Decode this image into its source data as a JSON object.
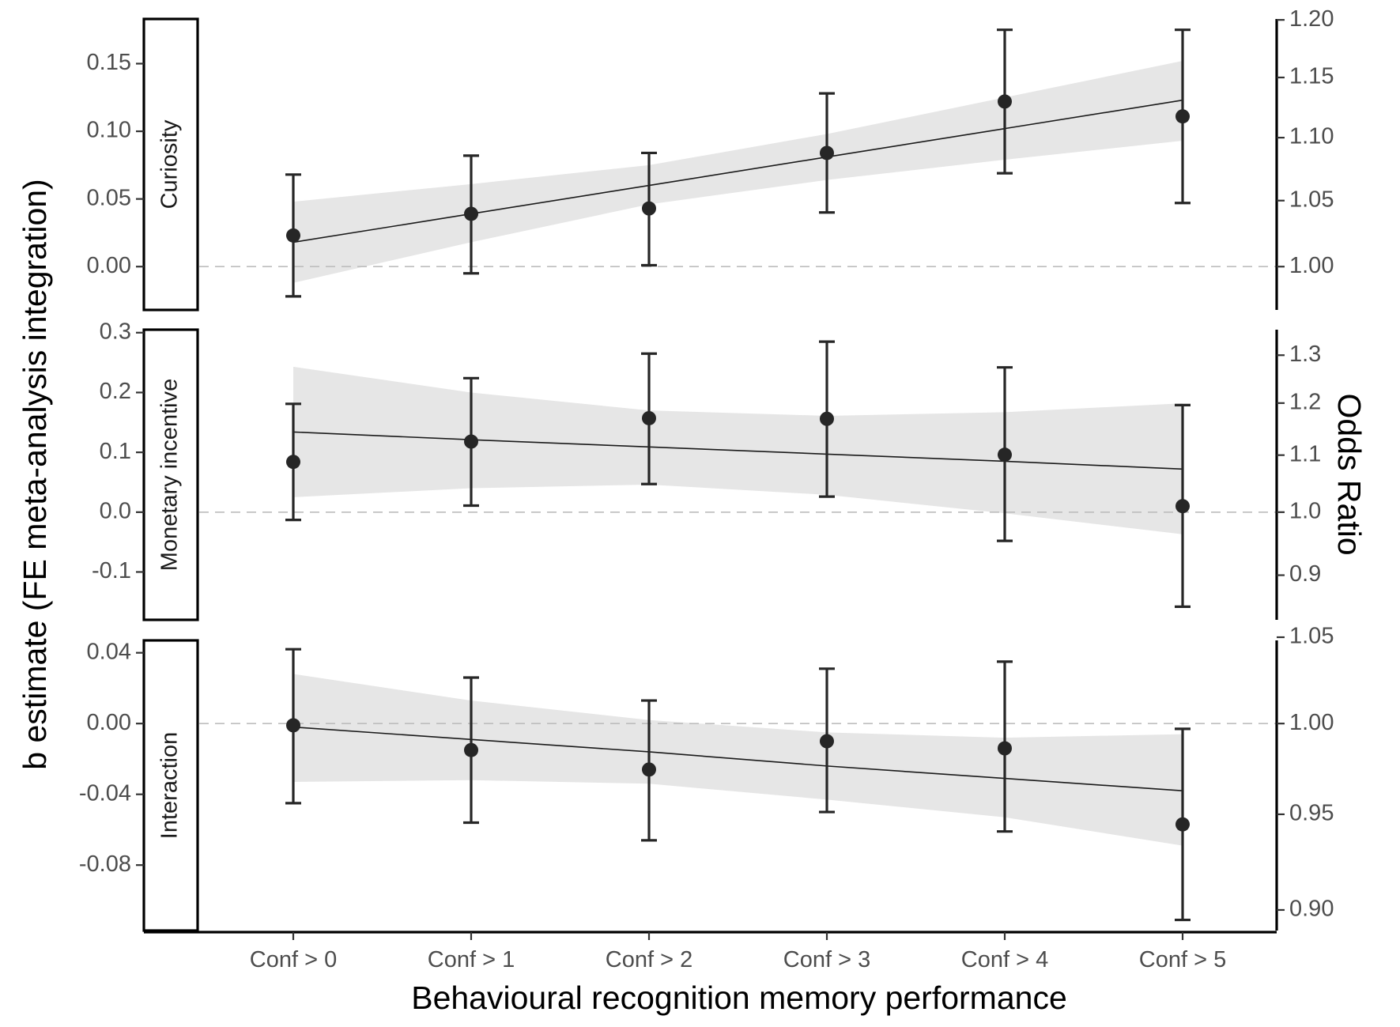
{
  "chart_data": {
    "type": "scatter",
    "x_categories": [
      "Conf > 0",
      "Conf > 1",
      "Conf > 2",
      "Conf > 3",
      "Conf > 4",
      "Conf > 5"
    ],
    "xlabel": "Behavioural recognition memory performance",
    "ylabel": "b estimate (FE meta-analysis integration)",
    "ylabel_right": "Odds Ratio",
    "reference_line": 0,
    "panels": [
      {
        "label": "Curiosity",
        "ylim": [
          -0.032,
          0.183
        ],
        "yticks": [
          0.0,
          0.05,
          0.1,
          0.15
        ],
        "ytick_labels": [
          "0.00",
          "0.05",
          "0.10",
          "0.15"
        ],
        "or_ticks": [
          1.0,
          1.05,
          1.1,
          1.15,
          1.2
        ],
        "or_tick_labels": [
          "1.00",
          "1.05",
          "1.10",
          "1.15",
          "1.20"
        ],
        "estimates": [
          0.023,
          0.039,
          0.043,
          0.084,
          0.122,
          0.111
        ],
        "ci_lower": [
          -0.022,
          -0.005,
          0.001,
          0.04,
          0.069,
          0.047
        ],
        "ci_upper": [
          0.068,
          0.082,
          0.084,
          0.128,
          0.175,
          0.175
        ],
        "fit": [
          0.018,
          0.039,
          0.06,
          0.081,
          0.102,
          0.123
        ],
        "fit_lower": [
          -0.012,
          0.018,
          0.046,
          0.064,
          0.079,
          0.093
        ],
        "fit_upper": [
          0.048,
          0.061,
          0.075,
          0.098,
          0.125,
          0.152
        ]
      },
      {
        "label": "Monetary incentive",
        "ylim": [
          -0.18,
          0.305
        ],
        "yticks": [
          -0.1,
          0.0,
          0.1,
          0.2,
          0.3
        ],
        "ytick_labels": [
          "-0.1",
          "0.0",
          "0.1",
          "0.2",
          "0.3"
        ],
        "or_ticks": [
          0.9,
          1.0,
          1.1,
          1.2,
          1.3
        ],
        "or_tick_labels": [
          "0.9",
          "1.0",
          "1.1",
          "1.2",
          "1.3"
        ],
        "estimates": [
          0.084,
          0.118,
          0.157,
          0.156,
          0.096,
          0.01
        ],
        "ci_lower": [
          -0.013,
          0.011,
          0.047,
          0.026,
          -0.048,
          -0.158
        ],
        "ci_upper": [
          0.181,
          0.224,
          0.265,
          0.285,
          0.242,
          0.179
        ],
        "fit": [
          0.134,
          0.121,
          0.109,
          0.097,
          0.085,
          0.072
        ],
        "fit_lower": [
          0.025,
          0.04,
          0.046,
          0.029,
          -0.002,
          -0.037
        ],
        "fit_upper": [
          0.243,
          0.2,
          0.17,
          0.161,
          0.167,
          0.182
        ]
      },
      {
        "label": "Interaction",
        "ylim": [
          -0.117,
          0.047
        ],
        "yticks": [
          -0.08,
          -0.04,
          0.0,
          0.04
        ],
        "ytick_labels": [
          "-0.08",
          "-0.04",
          "0.00",
          "0.04"
        ],
        "or_ticks": [
          0.9,
          0.95,
          1.0,
          1.05
        ],
        "or_tick_labels": [
          "0.90",
          "0.95",
          "1.00",
          "1.05"
        ],
        "estimates": [
          -0.001,
          -0.015,
          -0.026,
          -0.01,
          -0.014,
          -0.057
        ],
        "ci_lower": [
          -0.045,
          -0.056,
          -0.066,
          -0.05,
          -0.061,
          -0.111
        ],
        "ci_upper": [
          0.042,
          0.026,
          0.013,
          0.031,
          0.035,
          -0.003
        ],
        "fit": [
          -0.002,
          -0.009,
          -0.016,
          -0.024,
          -0.031,
          -0.038
        ],
        "fit_lower": [
          -0.033,
          -0.032,
          -0.034,
          -0.043,
          -0.053,
          -0.069
        ],
        "fit_upper": [
          0.028,
          0.013,
          0.002,
          -0.005,
          -0.008,
          -0.006
        ]
      }
    ]
  }
}
